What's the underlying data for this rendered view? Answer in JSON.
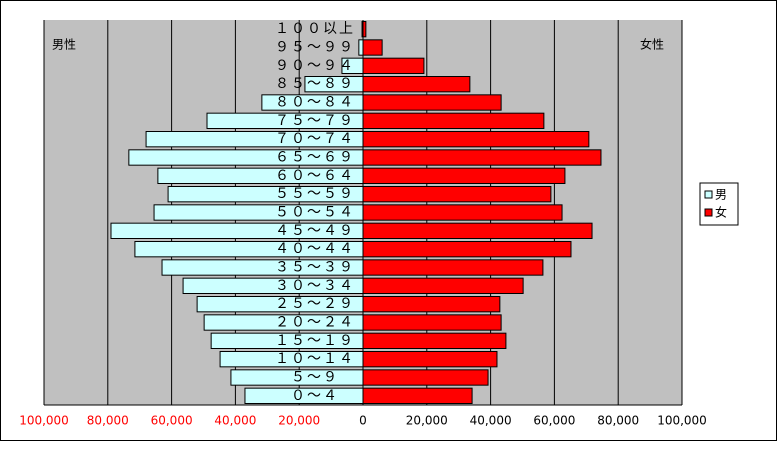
{
  "chart_data": {
    "type": "population-pyramid",
    "left_label": "男性",
    "right_label": "女性",
    "categories": [
      "０～４",
      "５～９",
      "１０～１４",
      "１５～１９",
      "２０～２４",
      "２５～２９",
      "３０～３４",
      "３５～３９",
      "４０～４４",
      "４５～４９",
      "５０～５４",
      "５５～５９",
      "６０～６４",
      "６５～６９",
      "７０～７４",
      "７５～７９",
      "８０～８４",
      "８５～８９",
      "９０～９４",
      "９５～９９",
      "１００以上"
    ],
    "series": [
      {
        "name": "男",
        "color": "#ccffff",
        "side": "left",
        "values": [
          37000,
          41400,
          44800,
          47600,
          49800,
          52000,
          56400,
          63000,
          71500,
          79000,
          65500,
          61100,
          64300,
          73400,
          68000,
          48900,
          31700,
          18200,
          6600,
          1300,
          300
        ]
      },
      {
        "name": "女",
        "color": "#ff0000",
        "side": "right",
        "values": [
          34200,
          39200,
          42000,
          44800,
          43300,
          42900,
          50200,
          56400,
          65200,
          71800,
          62400,
          58900,
          63300,
          74600,
          70800,
          56700,
          43300,
          33500,
          19100,
          6000,
          900
        ]
      }
    ],
    "xlim": [
      0,
      100000
    ],
    "left_xticks": [
      {
        "value": 100000,
        "label": "100,000"
      },
      {
        "value": 80000,
        "label": "80,000"
      },
      {
        "value": 60000,
        "label": "60,000"
      },
      {
        "value": 40000,
        "label": "40,000"
      },
      {
        "value": 20000,
        "label": "20,000"
      }
    ],
    "right_xticks": [
      0,
      {
        "value": 20000,
        "label": "20,000"
      },
      {
        "value": 40000,
        "label": "40,000"
      },
      {
        "value": 60000,
        "label": "60,000"
      },
      {
        "value": 80000,
        "label": "80,000"
      },
      {
        "value": 100000,
        "label": "100,000"
      }
    ],
    "left_tick_color": "#ff0000",
    "right_tick_color": "#000000",
    "plot_color": "#c0c0c0",
    "grid": true
  }
}
